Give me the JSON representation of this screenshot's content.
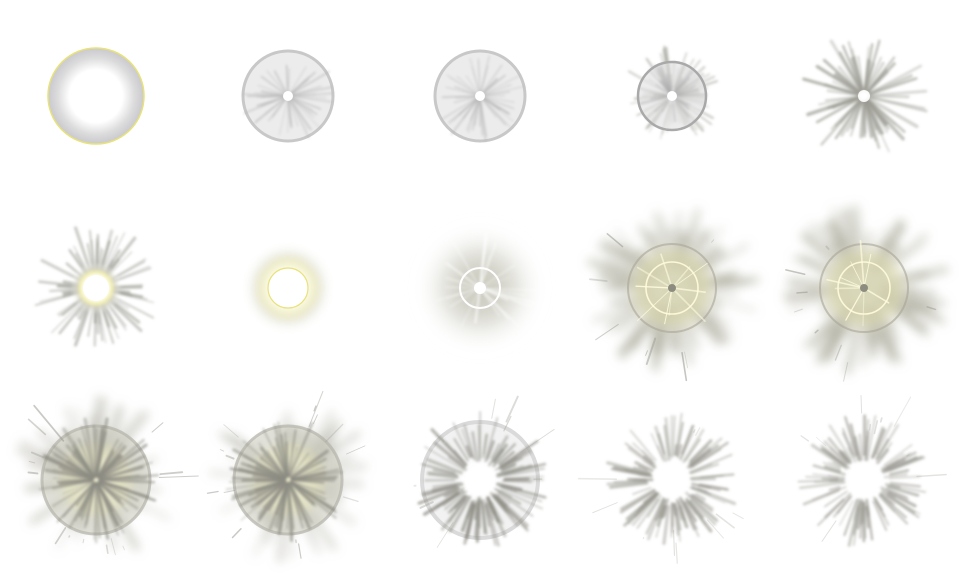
{
  "sprite_sheet": {
    "description_free": true,
    "background_color": "#ffffff",
    "colors": {
      "ring_gray": "#c8c8c8",
      "ray_gray": "#9a9a92",
      "ring_yellow": "#e8e27a",
      "glow_white": "#ffffff",
      "glow_yellow": "#f4f1b0"
    },
    "frames": [
      {
        "id": "f01",
        "kind": "ring",
        "yellow_outline": true
      },
      {
        "id": "f02",
        "kind": "disc-lines",
        "rays": 48
      },
      {
        "id": "f03",
        "kind": "disc-lines",
        "rays": 48
      },
      {
        "id": "f04",
        "kind": "disc-burst",
        "rays": 60
      },
      {
        "id": "f05",
        "kind": "burst",
        "rays": 70
      },
      {
        "id": "f06",
        "kind": "burst-glow",
        "rays": 70
      },
      {
        "id": "f07",
        "kind": "glow",
        "rays": 0
      },
      {
        "id": "f08",
        "kind": "soft-flash",
        "rays": 24
      },
      {
        "id": "f09",
        "kind": "big-flash",
        "rays": 80
      },
      {
        "id": "f10",
        "kind": "big-flash",
        "rays": 80
      },
      {
        "id": "f11",
        "kind": "shatter",
        "rays": 90
      },
      {
        "id": "f12",
        "kind": "shatter",
        "rays": 90
      },
      {
        "id": "f13",
        "kind": "debris-ring",
        "rays": 110
      },
      {
        "id": "f14",
        "kind": "debris",
        "rays": 120
      },
      {
        "id": "f15",
        "kind": "debris",
        "rays": 110
      }
    ]
  }
}
